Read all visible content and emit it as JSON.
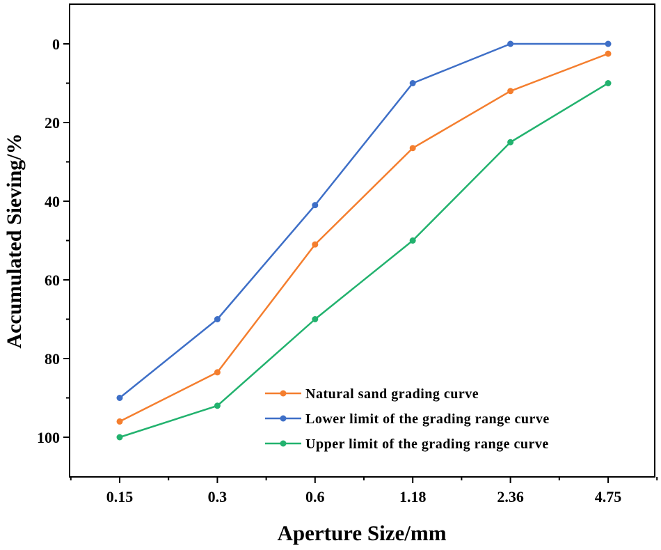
{
  "chart_data": {
    "type": "line",
    "title": "",
    "xlabel": "Aperture Size/mm",
    "ylabel": "Accumulated Sieving/%",
    "categories": [
      "0.15",
      "0.3",
      "0.6",
      "1.18",
      "2.36",
      "4.75"
    ],
    "ylim": [
      110,
      -10
    ],
    "y_inverted": true,
    "y_ticks": [
      0,
      20,
      40,
      60,
      80,
      100
    ],
    "y_minor_ticks": [
      10,
      30,
      50,
      70,
      90
    ],
    "legend_position": "bottom-right",
    "series": [
      {
        "name": "Natural sand grading curve",
        "color": "#f47e2e",
        "values": [
          96,
          83.5,
          51,
          26.5,
          12,
          2.5
        ]
      },
      {
        "name": "Lower limit of the grading range curve",
        "color": "#3e6fc7",
        "values": [
          90,
          70,
          41,
          10,
          0,
          0
        ]
      },
      {
        "name": "Upper limit of the grading range curve",
        "color": "#22b26e",
        "values": [
          100,
          92,
          70,
          50,
          25,
          10
        ]
      }
    ]
  }
}
